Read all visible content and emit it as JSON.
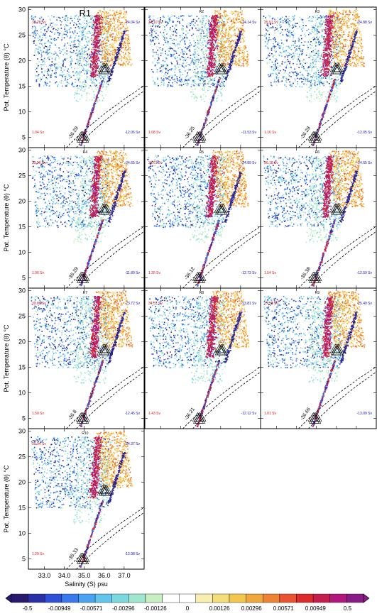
{
  "chart_data": {
    "type": "scatter",
    "description_kind": "multi-panel potential temperature vs salinity diagrams colored by transport",
    "xlabel": "Salinity (S) psu",
    "ylabel": "Pot. Temperature (θ) °C",
    "x_ticks": [
      "33.0",
      "34.0",
      "35.0",
      "36.0",
      "37.0"
    ],
    "x_tick_values": [
      33.0,
      34.0,
      35.0,
      36.0,
      37.0
    ],
    "xlim": [
      32.2,
      38.0
    ],
    "y_ticks": [
      "5",
      "10",
      "15",
      "20",
      "25",
      "30"
    ],
    "y_tick_values": [
      5,
      10,
      15,
      20,
      25,
      30
    ],
    "ylim": [
      3.0,
      30.5
    ],
    "panels": [
      {
        "title": "R1",
        "top_left": "33.28 Sv",
        "top_right": "-24.04 Sv",
        "bottom_left": "1.04 Sv",
        "bottom_right": "-12.06 Sv",
        "contour_label": "-36.29"
      },
      {
        "title": "R2",
        "top_left": "34.10 Sv",
        "top_right": "-24.14 Sv",
        "bottom_left": "1.08 Sv",
        "bottom_right": "-11.53 Sv",
        "contour_label": "-36.25"
      },
      {
        "title": "R3",
        "top_left": "35.57 Sv",
        "top_right": "-24.88 Sv",
        "bottom_left": "1.16 Sv",
        "bottom_right": "-12.05 Sv",
        "contour_label": "-36.29"
      },
      {
        "title": "R4",
        "top_left": "33.96 Sv",
        "top_right": "-24.65 Sv",
        "bottom_left": "1.06 Sv",
        "bottom_right": "-11.89 Sv",
        "contour_label": "-36.29"
      },
      {
        "title": "R5",
        "top_left": "36.61 Sv",
        "top_right": "-24.89 Sv",
        "bottom_left": "1.35 Sv",
        "bottom_right": "-12.73 Sv",
        "contour_label": "-36.12"
      },
      {
        "title": "R6",
        "top_left": "36.18 Sv",
        "top_right": "-24.65 Sv",
        "bottom_left": "1.54 Sv",
        "bottom_right": "-12.59 Sv",
        "contour_label": "-36.38"
      },
      {
        "title": "R7",
        "top_left": "33.00 Sv",
        "top_right": "-23.72 Sv",
        "bottom_left": "1.50 Sv",
        "bottom_right": "-12.45 Sv",
        "contour_label": "-36.8"
      },
      {
        "title": "R8",
        "top_left": "34.57 Sv",
        "top_right": "-23.81 Sv",
        "bottom_left": "1.43 Sv",
        "bottom_right": "-12.12 Sv",
        "contour_label": "-36.21"
      },
      {
        "title": "R9",
        "top_left": "37.58 Sv",
        "top_right": "-25.49 Sv",
        "bottom_left": "1.01 Sv",
        "bottom_right": "-13.09 Sv",
        "contour_label": "-36.66"
      },
      {
        "title": "R10",
        "top_left": "35.94 Sv",
        "top_right": "-24.37 Sv",
        "bottom_left": "1.29 Sv",
        "bottom_right": "-12.98 Sv",
        "contour_label": "-36.33"
      }
    ],
    "colorbar": {
      "labels": [
        "-0.5",
        "-0.00949",
        "-0.00571",
        "-0.00296",
        "-0.00126",
        "0",
        "0.00126",
        "0.00296",
        "0.00571",
        "0.00949",
        "0.5"
      ],
      "colors": [
        "#2a1a6e",
        "#2b2fa6",
        "#2f4fd6",
        "#3a78ee",
        "#4aa3f2",
        "#62c6ec",
        "#7ad9df",
        "#9fe6cf",
        "#c7efc2",
        "#ffffff",
        "#ffffff",
        "#f6efb0",
        "#f4de7a",
        "#f2c74c",
        "#f0a83a",
        "#ee8333",
        "#e9532f",
        "#dc2b2b",
        "#c61d4f",
        "#b0197b",
        "#8a1a86"
      ]
    }
  },
  "colors": {
    "negative_label": "#1010c8",
    "positive_label": "#e01010"
  }
}
